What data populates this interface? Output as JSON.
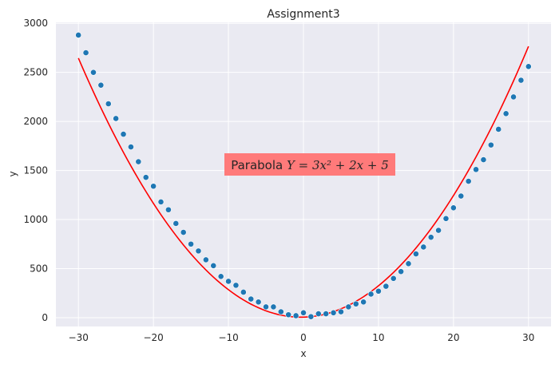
{
  "chart_data": {
    "type": "scatter",
    "title": "Assignment3",
    "xlabel": "x",
    "ylabel": "y",
    "xlim": [
      -33,
      33
    ],
    "ylim": [
      -90,
      3010
    ],
    "xticks": [
      -30,
      -20,
      -10,
      0,
      10,
      20,
      30
    ],
    "yticks": [
      0,
      500,
      1000,
      1500,
      2000,
      2500,
      3000
    ],
    "grid": true,
    "background": "#eaeaf2",
    "grid_color": "#ffffff",
    "scatter_color": "#1f77b4",
    "line_color": "#ff0000",
    "annotation": {
      "prefix": "Parabola ",
      "formula": "Y = 3x² + 2x + 5",
      "x": 0.5,
      "y": 1500,
      "bg_color": "#ff7a7a"
    },
    "scatter": {
      "x": [
        -30,
        -29,
        -28,
        -27,
        -26,
        -25,
        -24,
        -23,
        -22,
        -21,
        -20,
        -19,
        -18,
        -17,
        -16,
        -15,
        -14,
        -13,
        -12,
        -11,
        -10,
        -9,
        -8,
        -7,
        -6,
        -5,
        -4,
        -3,
        -2,
        -1,
        0,
        1,
        2,
        3,
        4,
        5,
        6,
        7,
        8,
        9,
        10,
        11,
        12,
        13,
        14,
        15,
        16,
        17,
        18,
        19,
        20,
        21,
        22,
        23,
        24,
        25,
        26,
        27,
        28,
        29,
        30
      ],
      "y": [
        2880,
        2700,
        2500,
        2370,
        2180,
        2030,
        1870,
        1740,
        1590,
        1430,
        1340,
        1180,
        1100,
        960,
        870,
        750,
        680,
        590,
        530,
        420,
        370,
        330,
        260,
        190,
        160,
        110,
        110,
        60,
        30,
        20,
        50,
        10,
        40,
        40,
        50,
        60,
        110,
        140,
        160,
        240,
        270,
        320,
        400,
        470,
        550,
        650,
        720,
        820,
        890,
        1010,
        1120,
        1240,
        1390,
        1510,
        1610,
        1760,
        1920,
        2080,
        2250,
        2420,
        2560
      ]
    },
    "curve": {
      "name": "Y = 3x² + 2x + 5",
      "a": 3,
      "b": 2,
      "c": 5,
      "xmin": -30,
      "xmax": 30
    }
  }
}
